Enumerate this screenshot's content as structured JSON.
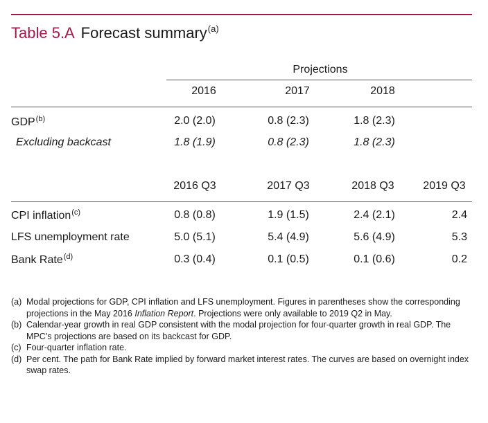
{
  "title": {
    "number": "Table 5.A",
    "name": "Forecast summary",
    "footnote": "(a)"
  },
  "header": {
    "group_label": "Projections",
    "years": [
      "2016",
      "2017",
      "2018"
    ]
  },
  "gdp_rows": [
    {
      "label": "GDP",
      "footnote": "(b)",
      "values": [
        "2.0 (2.0)",
        "0.8 (2.3)",
        "1.8 (2.3)"
      ]
    },
    {
      "label": "Excluding backcast",
      "footnote": "",
      "values": [
        "1.8 (1.9)",
        "0.8 (2.3)",
        "1.8 (2.3)"
      ]
    }
  ],
  "quarters": [
    "2016 Q3",
    "2017 Q3",
    "2018 Q3",
    "2019 Q3"
  ],
  "quarter_rows": [
    {
      "label": "CPI inflation",
      "footnote": "(c)",
      "values": [
        "0.8 (0.8)",
        "1.9 (1.5)",
        "2.4 (2.1)",
        "2.4"
      ]
    },
    {
      "label": "LFS unemployment rate",
      "footnote": "",
      "values": [
        "5.0 (5.1)",
        "5.4 (4.9)",
        "5.6 (4.9)",
        "5.3"
      ]
    },
    {
      "label": "Bank Rate",
      "footnote": "(d)",
      "values": [
        "0.3 (0.4)",
        "0.1 (0.5)",
        "0.1 (0.6)",
        "0.2"
      ]
    }
  ],
  "notes": [
    {
      "label": "(a)",
      "text_before": "Modal projections for GDP, CPI inflation and LFS unemployment.  Figures in parentheses show the corresponding projections in the May 2016 ",
      "text_italic": "Inflation Report",
      "text_after": ".  Projections were only available to 2019 Q2 in May."
    },
    {
      "label": "(b)",
      "text_before": "Calendar-year growth in real GDP consistent with the modal projection for four-quarter growth in real GDP.  The MPC’s projections are based on its backcast for GDP.",
      "text_italic": "",
      "text_after": ""
    },
    {
      "label": "(c)",
      "text_before": "Four-quarter inflation rate.",
      "text_italic": "",
      "text_after": ""
    },
    {
      "label": "(d)",
      "text_before": "Per cent.  The path for Bank Rate implied by forward market interest rates.  The curves are based on overnight index swap rates.",
      "text_italic": "",
      "text_after": ""
    }
  ],
  "colors": {
    "accent": "#a6174c",
    "rule": "#555555",
    "text": "#1a1a1a"
  }
}
